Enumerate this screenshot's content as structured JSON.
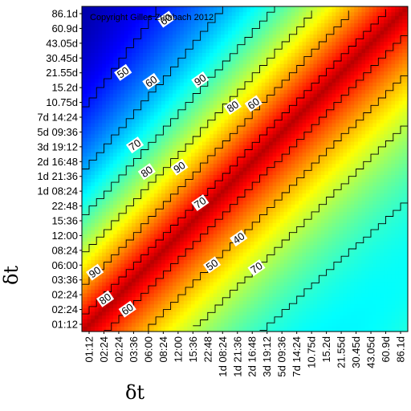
{
  "chart_data": {
    "type": "heatmap",
    "title": "",
    "copyright": "Copyright Gilles Zumbach 2012",
    "xlabel": "δt",
    "ylabel": "δt",
    "ticks": [
      "01:12",
      "02:24",
      "02:24",
      "03:36",
      "06:00",
      "08:24",
      "12:00",
      "15:36",
      "22:48",
      "1d 08:24",
      "1d 21:36",
      "2d 16:48",
      "3d 19:12",
      "5d 09:36",
      "7d 14:24",
      "10.75d",
      "15.2d",
      "21.55d",
      "30.45d",
      "43.05d",
      "60.9d",
      "86.1d"
    ],
    "contour_levels": [
      40,
      50,
      60,
      70,
      80,
      90
    ],
    "contour_labels": [
      {
        "text": "60",
        "x": 5.2,
        "y": 20.6
      },
      {
        "text": "50",
        "x": 2.3,
        "y": 17.0
      },
      {
        "text": "60",
        "x": 4.2,
        "y": 16.4
      },
      {
        "text": "90",
        "x": 7.5,
        "y": 16.5
      },
      {
        "text": "80",
        "x": 9.7,
        "y": 14.7
      },
      {
        "text": "60",
        "x": 11.1,
        "y": 14.9
      },
      {
        "text": "70",
        "x": 3.1,
        "y": 12.1
      },
      {
        "text": "80",
        "x": 3.9,
        "y": 10.3
      },
      {
        "text": "90",
        "x": 6.1,
        "y": 10.6
      },
      {
        "text": "70",
        "x": 7.5,
        "y": 8.2
      },
      {
        "text": "40",
        "x": 10.1,
        "y": 5.8
      },
      {
        "text": "50",
        "x": 8.3,
        "y": 4.0
      },
      {
        "text": "70",
        "x": 11.3,
        "y": 3.8
      },
      {
        "text": "90",
        "x": 0.4,
        "y": 3.5
      },
      {
        "text": "80",
        "x": 1.1,
        "y": 1.7
      },
      {
        "text": "60",
        "x": 2.6,
        "y": 1.0
      }
    ],
    "colormap": "jet",
    "value_range": [
      30,
      100
    ],
    "grid": false,
    "legend": "none"
  }
}
